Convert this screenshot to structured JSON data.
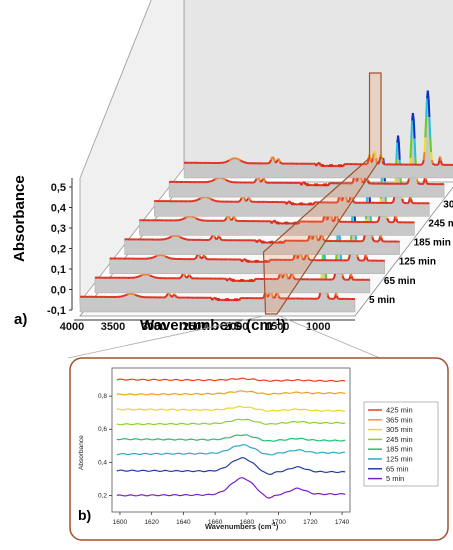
{
  "chart_data": [
    {
      "type": "line",
      "panel_label": "a)",
      "xlabel": "Wavenumbers (cm",
      "xlabel_sup": "-1",
      "xlabel_end": ")",
      "ylabel": "Absorbance",
      "x_ticks": [
        "4000",
        "3500",
        "3000",
        "2500",
        "2000",
        "1500",
        "1000"
      ],
      "y_ticks": [
        "-0,1",
        "0,0",
        "0,1",
        "0,2",
        "0,3",
        "0,4",
        "0,5"
      ],
      "xlim": [
        4000,
        650
      ],
      "ylim": [
        -0.1,
        0.5
      ],
      "series": [
        {
          "name": "425 min"
        },
        {
          "name": "365 min"
        },
        {
          "name": "305 min"
        },
        {
          "name": "245 min"
        },
        {
          "name": "185 min"
        },
        {
          "name": "125 min"
        },
        {
          "name": "65 min"
        },
        {
          "name": "5 min"
        }
      ],
      "peak_positions": [
        3380,
        2920,
        2850,
        2360,
        1740,
        1680,
        1600,
        1030,
        880
      ],
      "peak_heights": [
        0.03,
        0.04,
        0.03,
        0.02,
        0.06,
        0.08,
        0.06,
        0.45,
        0.05
      ],
      "highlight_region": [
        1740,
        1600
      ]
    },
    {
      "type": "line",
      "panel_label": "b)",
      "xlabel": "Wavenumbers (cm",
      "xlabel_sup": "-1",
      "xlabel_end": ")",
      "ylabel": "Absorbance",
      "x_ticks": [
        "1600",
        "1620",
        "1640",
        "1660",
        "1680",
        "1700",
        "1720",
        "1740"
      ],
      "y_ticks": [
        "0,2",
        "0,4",
        "0,6",
        "0,8"
      ],
      "xlim": [
        1595,
        1745
      ],
      "ylim": [
        0.1,
        0.97
      ],
      "legend_position": "right",
      "series": [
        {
          "name": "425 min",
          "color": "#e8401c",
          "offset": 0.9
        },
        {
          "name": "365 min",
          "color": "#f0a020",
          "offset": 0.81
        },
        {
          "name": "305 min",
          "color": "#e8d82a",
          "offset": 0.72
        },
        {
          "name": "245 min",
          "color": "#8cd030",
          "offset": 0.63
        },
        {
          "name": "185 min",
          "color": "#20c070",
          "offset": 0.54
        },
        {
          "name": "125 min",
          "color": "#30a8c8",
          "offset": 0.45
        },
        {
          "name": "65 min",
          "color": "#2040a0",
          "offset": 0.35
        },
        {
          "name": "5 min",
          "color": "#7a20c8",
          "offset": 0.2
        }
      ],
      "peak_center": 1677,
      "peak_heights": [
        0.01,
        0.015,
        0.02,
        0.025,
        0.03,
        0.05,
        0.08,
        0.1
      ]
    }
  ],
  "colors": {
    "border_brown": "#a0522d",
    "highlight_fill": "#f4c8a8",
    "floor_gray": "#bdbdbd",
    "wall_gray": "#d9d9d9"
  }
}
